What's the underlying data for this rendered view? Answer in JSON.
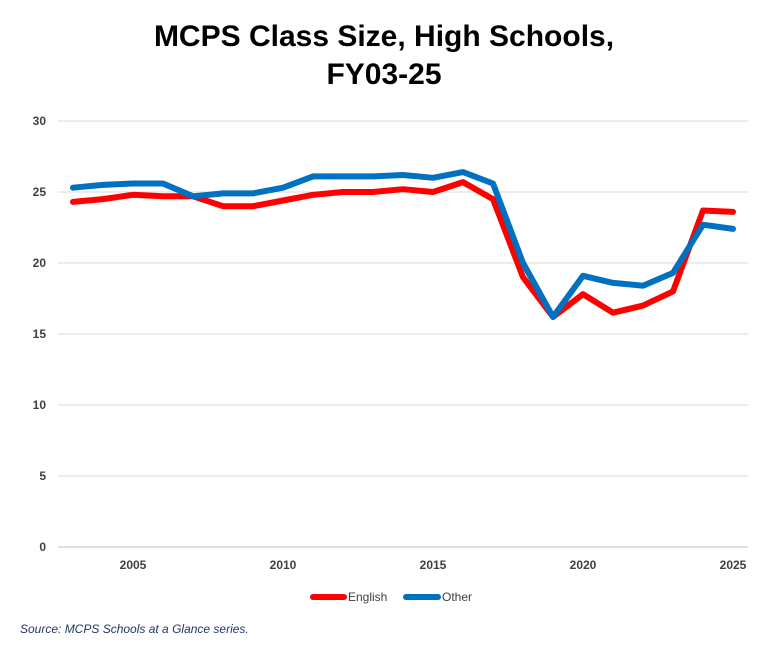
{
  "chart_data": {
    "type": "line",
    "title_lines": [
      "MCPS Class Size, High Schools,",
      "FY03-25"
    ],
    "x": [
      2003,
      2004,
      2005,
      2006,
      2007,
      2008,
      2009,
      2010,
      2011,
      2012,
      2013,
      2014,
      2015,
      2016,
      2017,
      2018,
      2019,
      2020,
      2021,
      2022,
      2023,
      2024,
      2025
    ],
    "x_ticks": [
      2005,
      2010,
      2015,
      2020,
      2025
    ],
    "y_ticks": [
      0,
      5,
      10,
      15,
      20,
      25,
      30
    ],
    "ylim": [
      0,
      30
    ],
    "xlim": [
      2002.5,
      2025.5
    ],
    "grid": "horizontal",
    "legend_position": "bottom",
    "series": [
      {
        "name": "English",
        "color": "#ff0000",
        "values": [
          24.3,
          24.5,
          24.8,
          24.7,
          24.7,
          24.0,
          24.0,
          24.4,
          24.8,
          25.0,
          25.0,
          25.2,
          25.0,
          25.7,
          24.5,
          19.0,
          16.2,
          17.8,
          16.5,
          17.0,
          18.0,
          23.7,
          23.6
        ]
      },
      {
        "name": "Other",
        "color": "#0070c0",
        "values": [
          25.3,
          25.5,
          25.6,
          25.6,
          24.7,
          24.9,
          24.9,
          25.3,
          26.1,
          26.1,
          26.1,
          26.2,
          26.0,
          26.4,
          25.6,
          20.0,
          16.2,
          19.1,
          18.6,
          18.4,
          19.3,
          22.7,
          22.4
        ]
      }
    ]
  },
  "source": "Source: MCPS Schools at a Glance series."
}
